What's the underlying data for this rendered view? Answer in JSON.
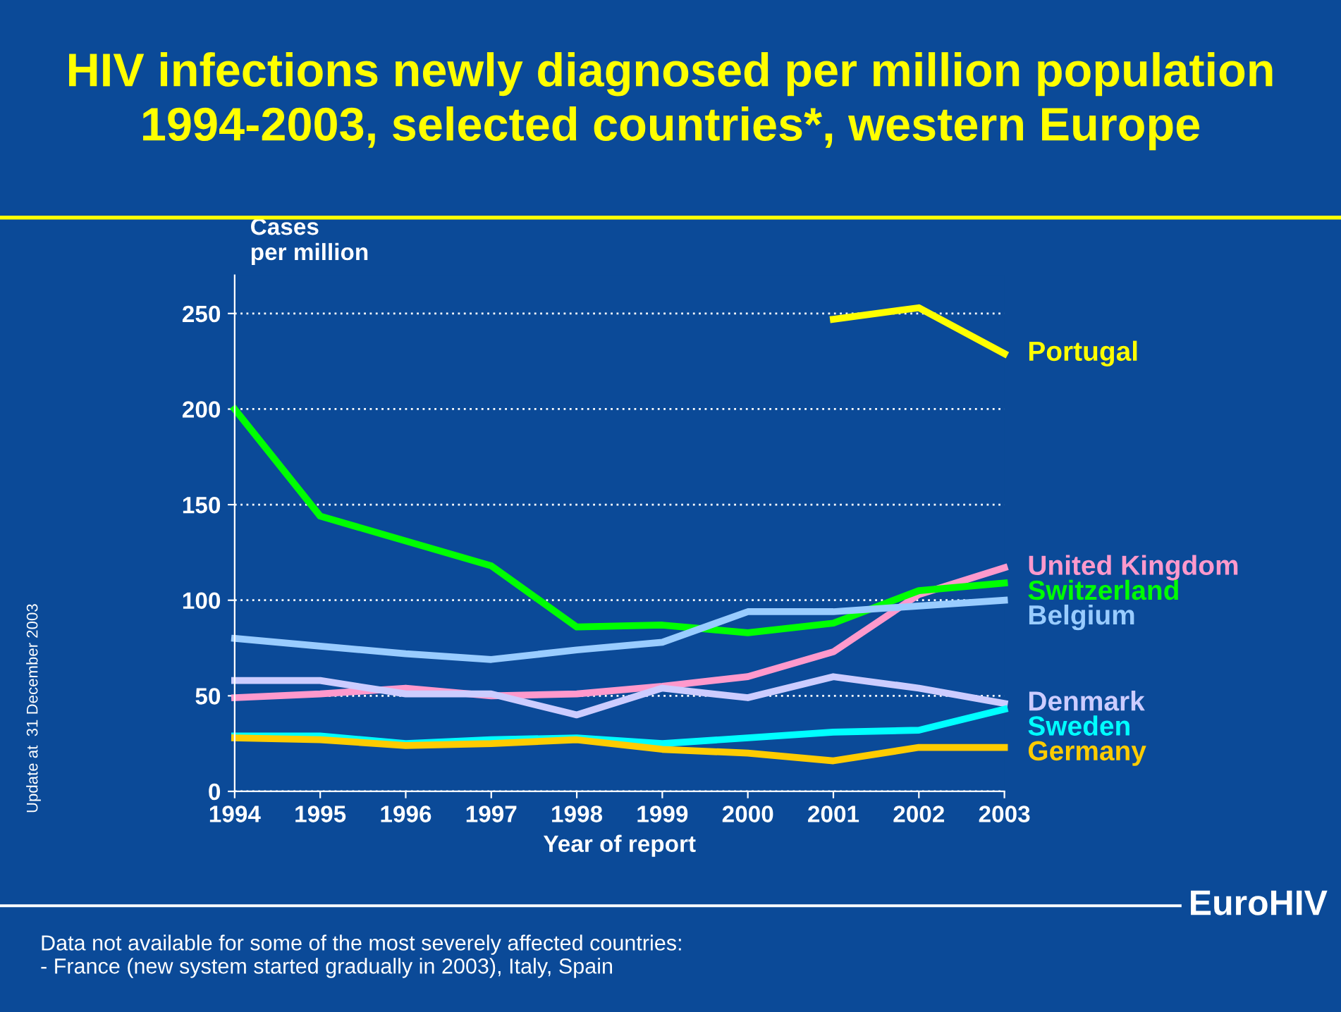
{
  "chart_data": {
    "type": "line",
    "title": "HIV infections newly diagnosed per million population\n1994-2003, selected countries*, western Europe",
    "ylabel": "Cases\nper million",
    "xlabel": "Year of report",
    "x": [
      1994,
      1995,
      1996,
      1997,
      1998,
      1999,
      2000,
      2001,
      2002,
      2003
    ],
    "xlim": [
      1994,
      2003
    ],
    "xticks": [
      1994,
      1995,
      1996,
      1997,
      1998,
      1999,
      2000,
      2001,
      2002,
      2003
    ],
    "ylim": [
      0,
      270
    ],
    "yticks": [
      0,
      50,
      100,
      150,
      200,
      250
    ],
    "grid": "y",
    "legend": false,
    "marker": "none",
    "line_style": "solid",
    "series": [
      {
        "name": "Portugal",
        "color": "#ffff00",
        "values": [
          null,
          null,
          null,
          null,
          null,
          null,
          null,
          247,
          253,
          229
        ]
      },
      {
        "name": "United Kingdom",
        "color": "#ff99cc",
        "values": [
          49,
          51,
          54,
          50,
          51,
          55,
          60,
          73,
          103,
          117
        ]
      },
      {
        "name": "Switzerland",
        "color": "#00ff00",
        "values": [
          200,
          144,
          131,
          118,
          86,
          87,
          83,
          88,
          105,
          109
        ]
      },
      {
        "name": "Belgium",
        "color": "#99ccff",
        "values": [
          80,
          76,
          72,
          69,
          74,
          78,
          94,
          94,
          97,
          100
        ]
      },
      {
        "name": "Denmark",
        "color": "#ccccff",
        "values": [
          58,
          58,
          51,
          51,
          40,
          54,
          49,
          60,
          54,
          46
        ]
      },
      {
        "name": "Sweden",
        "color": "#00ffff",
        "values": [
          29,
          29,
          25,
          27,
          28,
          25,
          28,
          31,
          32,
          43
        ]
      },
      {
        "name": "Germany",
        "color": "#ffcc00",
        "values": [
          28,
          27,
          24,
          25,
          27,
          22,
          20,
          16,
          23,
          23
        ]
      }
    ],
    "annotations": [
      "Update at  31 December 2003",
      "EuroHIV",
      "Data not available for some of the most severely affected countries:\n- France (new system started gradually in 2003), Italy, Spain"
    ]
  }
}
